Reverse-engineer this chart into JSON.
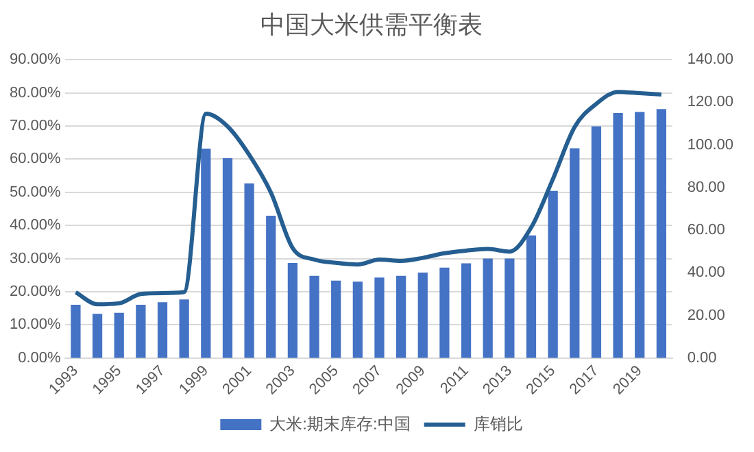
{
  "chart_data": {
    "type": "bar",
    "title": "中国大米供需平衡表",
    "categories": [
      "1993",
      null,
      "1995",
      null,
      "1997",
      null,
      "1999",
      null,
      "2001",
      null,
      "2003",
      null,
      "2005",
      null,
      "2007",
      null,
      "2009",
      null,
      "2011",
      null,
      "2013",
      null,
      "2015",
      null,
      "2017",
      null,
      "2019",
      null
    ],
    "series": [
      {
        "name": "大米:期末库存:中国",
        "axis": "y2",
        "color": "#4472c4",
        "values": [
          25,
          20.7,
          21.2,
          25,
          26.2,
          27.5,
          98.3,
          93.8,
          82,
          66.8,
          44.6,
          38.6,
          36.3,
          35.8,
          37.8,
          38.6,
          40.1,
          42.4,
          44.4,
          46.7,
          46.7,
          57.5,
          78.4,
          98.4,
          108.7,
          115,
          115.5,
          116.8
        ]
      },
      {
        "name": "库销比",
        "type": "line",
        "axis": "y",
        "color": "#255e91",
        "values": [
          19.8,
          16.2,
          16.5,
          19.3,
          19.6,
          19.9,
          73.7,
          69.9,
          61.3,
          49.9,
          33.2,
          29.7,
          28.7,
          28.2,
          29.7,
          29.3,
          30.2,
          31.6,
          32.4,
          32.9,
          32.1,
          39.4,
          54,
          69.7,
          76.7,
          80.3,
          79.9,
          79.5
        ]
      }
    ],
    "ylim": [
      0,
      90
    ],
    "yticks": [
      {
        "value": 0,
        "label": "0.00%"
      },
      {
        "value": 10,
        "label": "10.00%"
      },
      {
        "value": 20,
        "label": "20.00%"
      },
      {
        "value": 30,
        "label": "30.00%"
      },
      {
        "value": 40,
        "label": "40.00%"
      },
      {
        "value": 50,
        "label": "50.00%"
      },
      {
        "value": 60,
        "label": "60.00%"
      },
      {
        "value": 70,
        "label": "70.00%"
      },
      {
        "value": 80,
        "label": "80.00%"
      },
      {
        "value": 90,
        "label": "90.00%"
      }
    ],
    "y2lim": [
      0,
      140
    ],
    "y2ticks": [
      {
        "value": 0,
        "label": "0.00"
      },
      {
        "value": 20,
        "label": "20.00"
      },
      {
        "value": 40,
        "label": "40.00"
      },
      {
        "value": 60,
        "label": "60.00"
      },
      {
        "value": 80,
        "label": "80.00"
      },
      {
        "value": 100,
        "label": "100.00"
      },
      {
        "value": 120,
        "label": "120.00"
      },
      {
        "value": 140,
        "label": "140.00"
      }
    ],
    "grid": "y",
    "legend": "bottom",
    "marker": "none",
    "line_style": "solid"
  }
}
